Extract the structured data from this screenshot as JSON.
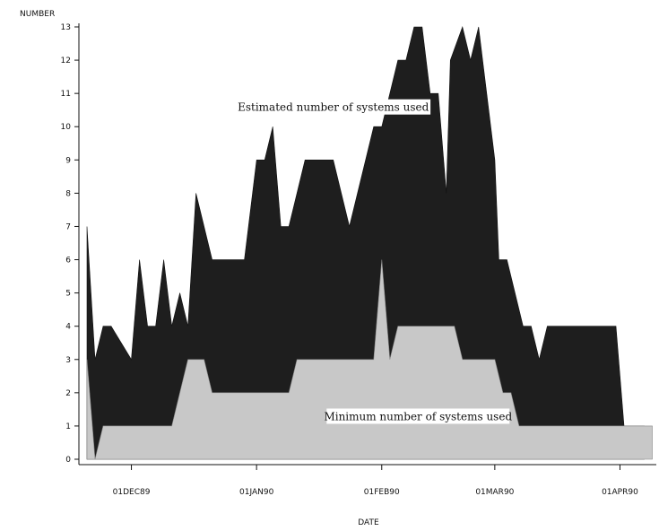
{
  "chart_data": {
    "type": "area",
    "title": "",
    "xlabel": "DATE",
    "ylabel": "NUMBER",
    "ylim": [
      0,
      13
    ],
    "yticks": [
      0,
      1,
      2,
      3,
      4,
      5,
      6,
      7,
      8,
      9,
      10,
      11,
      12,
      13
    ],
    "xlim": [
      "1989-11-18",
      "1990-04-10"
    ],
    "xticks": [
      {
        "date": "1989-12-01",
        "label": "01DEC89"
      },
      {
        "date": "1990-01-01",
        "label": "01JAN90"
      },
      {
        "date": "1990-02-01",
        "label": "01FEB90"
      },
      {
        "date": "1990-03-01",
        "label": "01MAR90"
      },
      {
        "date": "1990-04-01",
        "label": "01APR90"
      }
    ],
    "series": [
      {
        "name": "Estimated number of systems used",
        "color": "#1e1e1e",
        "x": [
          "1989-11-20",
          "1989-11-22",
          "1989-11-24",
          "1989-11-26",
          "1989-12-01",
          "1989-12-03",
          "1989-12-05",
          "1989-12-07",
          "1989-12-09",
          "1989-12-11",
          "1989-12-13",
          "1989-12-15",
          "1989-12-17",
          "1989-12-19",
          "1989-12-21",
          "1989-12-23",
          "1989-12-25",
          "1989-12-27",
          "1989-12-29",
          "1990-01-01",
          "1990-01-03",
          "1990-01-05",
          "1990-01-07",
          "1990-01-09",
          "1990-01-11",
          "1990-01-13",
          "1990-01-16",
          "1990-01-18",
          "1990-01-20",
          "1990-01-22",
          "1990-01-24",
          "1990-01-30",
          "1990-01-31",
          "1990-02-01",
          "1990-02-03",
          "1990-02-05",
          "1990-02-07",
          "1990-02-09",
          "1990-02-11",
          "1990-02-13",
          "1990-02-14",
          "1990-02-15",
          "1990-02-17",
          "1990-02-18",
          "1990-02-21",
          "1990-02-23",
          "1990-02-25",
          "1990-02-26",
          "1990-03-01",
          "1990-03-02",
          "1990-03-04",
          "1990-03-06",
          "1990-03-08",
          "1990-03-10",
          "1990-03-12",
          "1990-03-14",
          "1990-03-16",
          "1990-03-17",
          "1990-03-19",
          "1990-03-21",
          "1990-03-24",
          "1990-03-27",
          "1990-03-28",
          "1990-03-31",
          "1990-04-02",
          "1990-04-03",
          "1990-04-05",
          "1990-04-07"
        ],
        "values": [
          7,
          3,
          4,
          4,
          3,
          6,
          4,
          4,
          6,
          4,
          5,
          4,
          8,
          7,
          6,
          6,
          6,
          6,
          6,
          9,
          9,
          10,
          7,
          7,
          8,
          9,
          9,
          9,
          9,
          8,
          7,
          10,
          10,
          10,
          11,
          12,
          12,
          13,
          13,
          11,
          11,
          11,
          8,
          12,
          13,
          12,
          13,
          12,
          9,
          6,
          6,
          5,
          4,
          4,
          3,
          4,
          4,
          4,
          4,
          4,
          4,
          4,
          4,
          4,
          1,
          1,
          1,
          1
        ]
      },
      {
        "name": "Minimum number of systems used",
        "color": "#c8c8c8",
        "x": [
          "1989-11-20",
          "1989-11-22",
          "1989-11-24",
          "1989-11-26",
          "1989-11-29",
          "1989-12-01",
          "1989-12-03",
          "1989-12-05",
          "1989-12-07",
          "1989-12-09",
          "1989-12-11",
          "1989-12-13",
          "1989-12-15",
          "1989-12-17",
          "1989-12-19",
          "1989-12-21",
          "1989-12-23",
          "1989-12-25",
          "1989-12-27",
          "1989-12-30",
          "1990-01-01",
          "1990-01-03",
          "1990-01-05",
          "1990-01-07",
          "1990-01-09",
          "1990-01-11",
          "1990-01-14",
          "1990-01-17",
          "1990-01-20",
          "1990-01-22",
          "1990-01-25",
          "1990-01-28",
          "1990-01-30",
          "1990-02-01",
          "1990-02-03",
          "1990-02-05",
          "1990-02-07",
          "1990-02-09",
          "1990-02-11",
          "1990-02-13",
          "1990-02-15",
          "1990-02-17",
          "1990-02-19",
          "1990-02-21",
          "1990-02-23",
          "1990-02-25",
          "1990-02-27",
          "1990-03-01",
          "1990-03-03",
          "1990-03-05",
          "1990-03-07",
          "1990-03-09",
          "1990-03-12",
          "1990-03-14",
          "1990-03-16",
          "1990-03-18",
          "1990-03-21",
          "1990-03-23",
          "1990-03-25",
          "1990-03-27",
          "1990-03-30",
          "1990-04-01",
          "1990-04-03",
          "1990-04-05",
          "1990-04-07",
          "1990-04-09"
        ],
        "values": [
          3,
          0,
          1,
          1,
          1,
          1,
          1,
          1,
          1,
          1,
          1,
          2,
          3,
          3,
          3,
          2,
          2,
          2,
          2,
          2,
          2,
          2,
          2,
          2,
          2,
          3,
          3,
          3,
          3,
          3,
          3,
          3,
          3,
          6,
          3,
          4,
          4,
          4,
          4,
          4,
          4,
          4,
          4,
          3,
          3,
          3,
          3,
          3,
          2,
          2,
          1,
          1,
          1,
          1,
          1,
          1,
          1,
          1,
          1,
          1,
          1,
          1,
          1,
          1,
          1,
          1
        ]
      }
    ],
    "annotations": [
      {
        "text": "Estimated number of systems used",
        "x": "1990-01-20",
        "y": 10.5
      },
      {
        "text": "Minimum number of systems used",
        "x": "1990-02-10",
        "y": 1.2
      }
    ],
    "grid": false,
    "legend": "none"
  }
}
